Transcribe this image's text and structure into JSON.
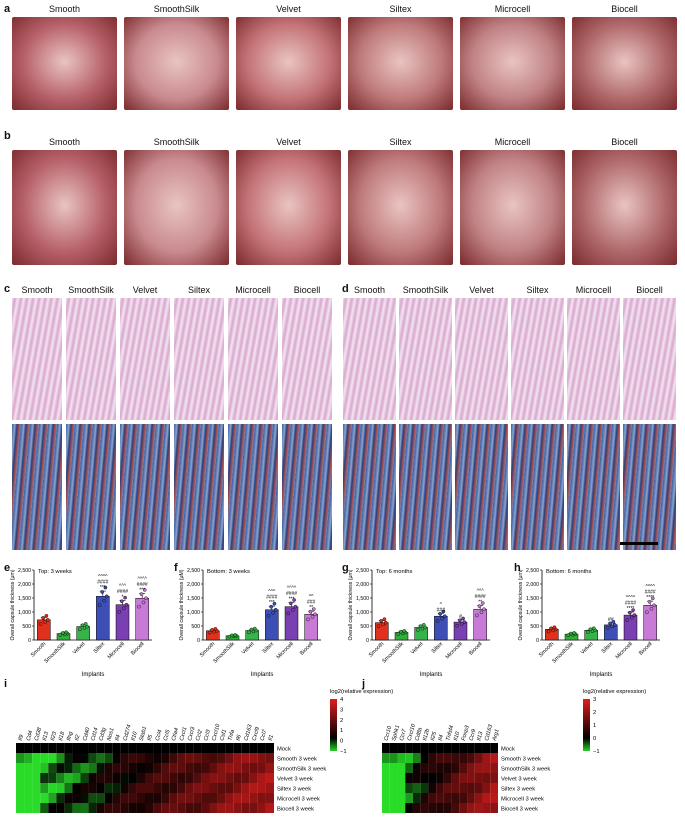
{
  "panels": {
    "a": "a",
    "b": "b",
    "c": "c",
    "d": "d",
    "e": "e",
    "f": "f",
    "g": "g",
    "h": "h",
    "i": "i",
    "j": "j"
  },
  "implants": [
    "Smooth",
    "SmoothSilk",
    "Velvet",
    "Siltex",
    "Microcell",
    "Biocell"
  ],
  "colors": {
    "Smooth": "#e0301e",
    "SmoothSilk": "#2fae3a",
    "Velvet": "#38b24a",
    "Siltex": "#3d4fb5",
    "Microcell": "#7a3fb0",
    "Biocell": "#c77ad6"
  },
  "chart_data": [
    {
      "type": "bar",
      "panel": "e",
      "title": "Top: 3 weeks",
      "xlabel": "Implants",
      "ylabel": "Overall capsule thickness (μm)",
      "ylim": [
        0,
        2500
      ],
      "yticks": [
        "0",
        "500",
        "1,000",
        "1,500",
        "2,000",
        "2,500"
      ],
      "categories": [
        "Smooth",
        "SmoothSilk",
        "Velvet",
        "Siltex",
        "Microcell",
        "Biocell"
      ],
      "values": [
        720,
        230,
        480,
        1560,
        1260,
        1490
      ],
      "annotations": [
        "",
        "",
        "",
        "^^^^\n####\n***",
        "^^^\n####\n*",
        "^^^^\n####\n***"
      ]
    },
    {
      "type": "bar",
      "panel": "f",
      "title": "Bottom: 3 weeks",
      "xlabel": "Implants",
      "ylabel": "Overall capsule thickness (μM)",
      "ylim": [
        0,
        2500
      ],
      "yticks": [
        "0",
        "500",
        "1,000",
        "1,500",
        "2,000",
        "2,500"
      ],
      "categories": [
        "Smooth",
        "SmoothSilk",
        "Velvet",
        "Siltex",
        "Microcell",
        "Biocell"
      ],
      "values": [
        330,
        150,
        340,
        1080,
        1190,
        920
      ],
      "annotations": [
        "",
        "",
        "",
        "^^^\n####\n***",
        "^^^^\n####\n***",
        "^^\n###\n**"
      ]
    },
    {
      "type": "bar",
      "panel": "g",
      "title": "Top: 6 months",
      "xlabel": "Implants",
      "ylabel": "Overall capsule thickness (μm)",
      "ylim": [
        0,
        2500
      ],
      "yticks": [
        "0",
        "500",
        "1,000",
        "1,500",
        "2,000",
        "2,500"
      ],
      "categories": [
        "Smooth",
        "SmoothSilk",
        "Velvet",
        "Siltex",
        "Microcell",
        "Biocell"
      ],
      "values": [
        620,
        270,
        450,
        850,
        640,
        1100
      ],
      "annotations": [
        "",
        "",
        "",
        "^\n###",
        "#",
        "^^^\n####\n**"
      ]
    },
    {
      "type": "bar",
      "panel": "h",
      "title": "Bottom: 6 months",
      "xlabel": "Implants",
      "ylabel": "Overall capsule thickness (μm)",
      "ylim": [
        0,
        2500
      ],
      "yticks": [
        "0",
        "500",
        "1,000",
        "1,500",
        "2,000",
        "2,500"
      ],
      "categories": [
        "Smooth",
        "SmoothSilk",
        "Velvet",
        "Siltex",
        "Microcell",
        "Biocell"
      ],
      "values": [
        380,
        210,
        350,
        540,
        890,
        1240
      ],
      "annotations": [
        "",
        "",
        "",
        "##",
        "^^^^\n####\n****",
        "^^^^\n####\n****"
      ]
    },
    {
      "type": "heatmap",
      "panel": "i",
      "columns": [
        "Il9",
        "Cd4",
        "Cd38",
        "Il13",
        "Il23",
        "Il18",
        "Ifng",
        "Il2",
        "Cd40",
        "Cd14",
        "Cd3g",
        "Nos1",
        "Il4",
        "Cd274",
        "Il10",
        "Stab1",
        "Il5",
        "Ccl4",
        "Ccl5",
        "Ctla4",
        "Cxcl1",
        "Cxcl3",
        "Ccl2",
        "Ccl3",
        "Cxcl10",
        "Csf1",
        "Tnfa",
        "Il6",
        "Cd163",
        "Cxcl9",
        "Ccl7",
        "Il1"
      ],
      "rows": [
        "Mock",
        "Smooth 3 week",
        "SmoothSilk 3 week",
        "Velvet 3 week",
        "Siltex 3 week",
        "Microcell 3 week",
        "Biocell 3 week"
      ],
      "legend_title": "log2(relative expression)",
      "legend_ticks": [
        "4",
        "3",
        "2",
        "1",
        "0",
        "−1"
      ]
    },
    {
      "type": "heatmap",
      "panel": "j",
      "columns": [
        "Ccr10",
        "Sphk1",
        "Ccr7",
        "Cxcl10",
        "Cd8a",
        "Il12b",
        "Il25",
        "Il4",
        "Tnfsf4",
        "Il10",
        "Foxp3",
        "Ccr9",
        "Il13",
        "Cd163",
        "Arg1"
      ],
      "rows": [
        "Mock",
        "Smooth 3 week",
        "SmoothSilk 3 week",
        "Velvet 3 week",
        "Siltex 3 week",
        "Microcell 3 week",
        "Biocell 3 week"
      ],
      "legend_title": "log2(relative expression)",
      "legend_ticks": [
        "3",
        "2",
        "1",
        "0",
        "−1"
      ]
    }
  ]
}
